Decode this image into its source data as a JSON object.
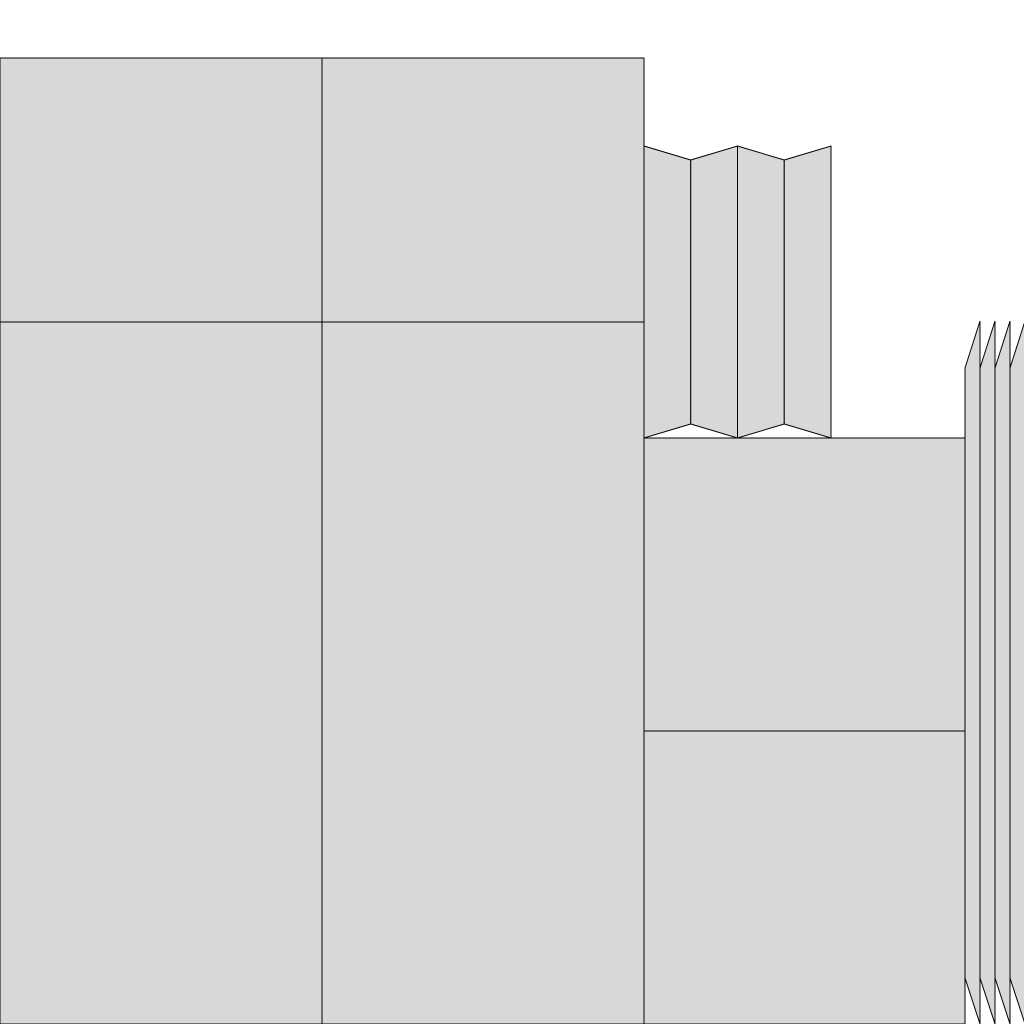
{
  "colors": {
    "panel_fill": "#d8d8d8",
    "outline": "#000000",
    "background": "#ffffff"
  }
}
